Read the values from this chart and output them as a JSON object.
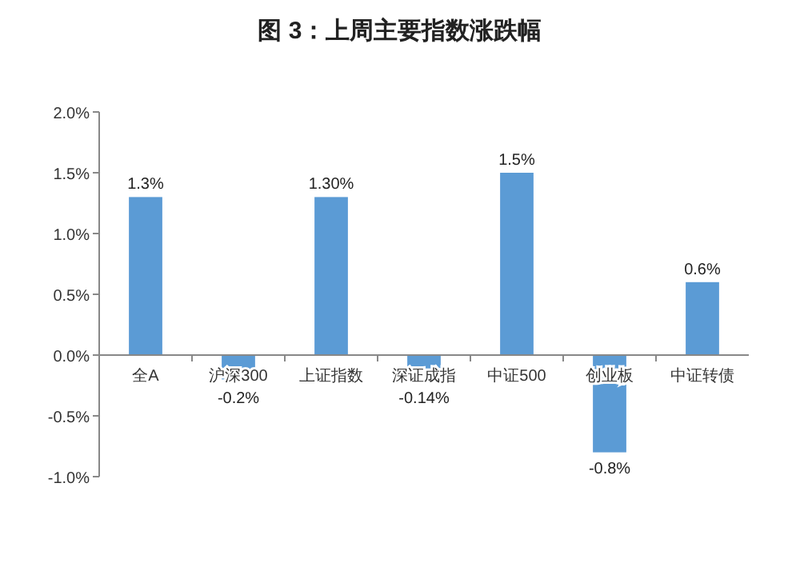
{
  "chart_data": {
    "type": "bar",
    "title": "图 3：上周主要指数涨跌幅",
    "categories": [
      "全A",
      "沪深300",
      "上证指数",
      "深证成指",
      "中证500",
      "创业板",
      "中证转债"
    ],
    "values": [
      1.3,
      -0.2,
      1.3,
      -0.14,
      1.5,
      -0.8,
      0.6
    ],
    "value_labels": [
      "1.3%",
      "-0.2%",
      "1.30%",
      "-0.14%",
      "1.5%",
      "-0.8%",
      "0.6%"
    ],
    "color": "#5b9bd5",
    "ylim": [
      -1.0,
      2.0
    ],
    "yticks": [
      {
        "value": -1.0,
        "label": "-1.0%"
      },
      {
        "value": -0.5,
        "label": "-0.5%"
      },
      {
        "value": 0.0,
        "label": "0.0%"
      },
      {
        "value": 0.5,
        "label": "0.5%"
      },
      {
        "value": 1.0,
        "label": "1.0%"
      },
      {
        "value": 1.5,
        "label": "1.5%"
      },
      {
        "value": 2.0,
        "label": "2.0%"
      }
    ],
    "grid": false
  }
}
